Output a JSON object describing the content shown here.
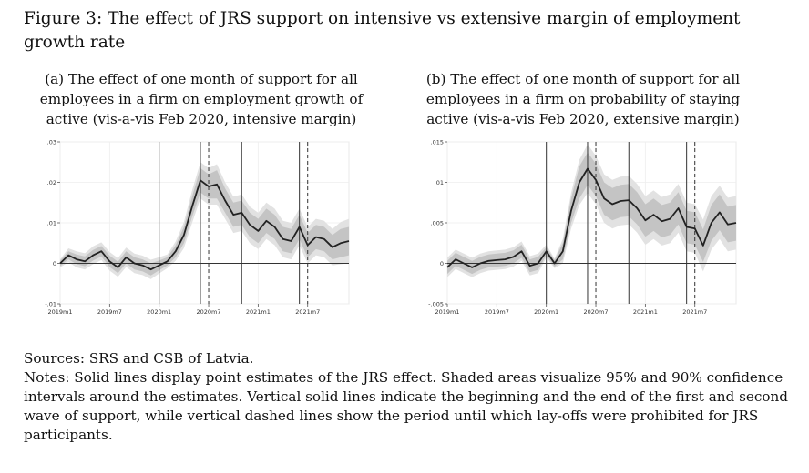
{
  "figure": {
    "title": "Figure 3: The effect of JRS support on intensive vs extensive margin of employment growth rate"
  },
  "panels": [
    {
      "title": "(a) The effect of one month of support for all employees in a firm on employment growth of active (vis-a-vis Feb 2020, intensive margin)"
    },
    {
      "title": "(b) The effect of one month of support for all employees in a firm on probability of staying active (vis-a-vis Feb 2020, extensive margin)"
    }
  ],
  "notes": {
    "sources": "Sources: SRS and CSB of Latvia.",
    "text": "Notes: Solid lines display point estimates of the JRS effect. Shaded areas visualize 95% and 90% confidence intervals around the estimates. Vertical solid lines indicate the beginning and the end of the first and second wave of support, while vertical dashed lines show the period until which lay-offs were prohibited for JRS participants."
  },
  "chart_data": [
    {
      "type": "line",
      "title": "(a) The effect of one month of support for all employees in a firm on employment growth of active (vis-a-vis Feb 2020, intensive margin)",
      "x_tick_labels": [
        "2019m1",
        "2019m7",
        "2020m1",
        "2020m7",
        "2021m1",
        "2021m7"
      ],
      "x_tick_index": [
        0,
        6,
        12,
        18,
        24,
        30
      ],
      "y_tick_labels": [
        "-.01",
        "0",
        ".01",
        ".02",
        ".03"
      ],
      "y_tick_values": [
        -0.01,
        0,
        0.01,
        0.02,
        0.03
      ],
      "ylim": [
        -0.01,
        0.03
      ],
      "xlim": [
        0,
        35
      ],
      "point_estimate": [
        0.0,
        0.002,
        0.001,
        0.0005,
        0.002,
        0.003,
        0.0005,
        -0.001,
        0.0015,
        0.0,
        -0.0005,
        -0.0015,
        -0.0005,
        0.0005,
        0.003,
        0.007,
        0.014,
        0.0205,
        0.019,
        0.0195,
        0.0155,
        0.012,
        0.0125,
        0.0095,
        0.008,
        0.0105,
        0.009,
        0.006,
        0.0055,
        0.009,
        0.0045,
        0.0065,
        0.006,
        0.004,
        0.005,
        0.0055
      ],
      "ci90_halfwidth": [
        0.0007,
        0.001,
        0.0012,
        0.0012,
        0.0013,
        0.0013,
        0.0014,
        0.0014,
        0.0015,
        0.0015,
        0.0015,
        0.0015,
        0.0012,
        0.001,
        0.0015,
        0.002,
        0.0025,
        0.003,
        0.003,
        0.0035,
        0.003,
        0.003,
        0.003,
        0.003,
        0.003,
        0.003,
        0.003,
        0.003,
        0.003,
        0.003,
        0.003,
        0.003,
        0.003,
        0.003,
        0.0035,
        0.0035
      ],
      "ci95_halfwidth": [
        0.001,
        0.0017,
        0.002,
        0.002,
        0.0022,
        0.0022,
        0.0023,
        0.0023,
        0.0024,
        0.0024,
        0.0024,
        0.0024,
        0.002,
        0.0017,
        0.0024,
        0.0032,
        0.004,
        0.0045,
        0.0045,
        0.005,
        0.0045,
        0.0045,
        0.0045,
        0.0045,
        0.0045,
        0.0045,
        0.0045,
        0.0045,
        0.0045,
        0.0045,
        0.0045,
        0.0045,
        0.0045,
        0.0045,
        0.0052,
        0.0055
      ],
      "vlines_solid": [
        12,
        17,
        22,
        29
      ],
      "vlines_dashed": [
        18,
        30
      ],
      "hline": 0
    },
    {
      "type": "line",
      "title": "(b) The effect of one month of support for all employees in a firm on probability of staying active (vis-a-vis Feb 2020, extensive margin)",
      "x_tick_labels": [
        "2019m1",
        "2019m7",
        "2020m1",
        "2020m7",
        "2021m1",
        "2021m7"
      ],
      "x_tick_index": [
        0,
        6,
        12,
        18,
        24,
        30
      ],
      "y_tick_labels": [
        "-.005",
        "0",
        ".005",
        ".01",
        ".015"
      ],
      "y_tick_values": [
        -0.005,
        0,
        0.005,
        0.01,
        0.015
      ],
      "ylim": [
        -0.005,
        0.015
      ],
      "xlim": [
        0,
        35
      ],
      "point_estimate": [
        -0.0005,
        0.0005,
        0.0,
        -0.0005,
        0.0,
        0.0003,
        0.0004,
        0.0005,
        0.0008,
        0.0015,
        -0.0003,
        0.0,
        0.0015,
        0.0,
        0.0015,
        0.0065,
        0.01,
        0.0117,
        0.0103,
        0.008,
        0.0073,
        0.0077,
        0.0078,
        0.0068,
        0.0053,
        0.006,
        0.0052,
        0.0055,
        0.0068,
        0.0045,
        0.0043,
        0.0022,
        0.005,
        0.0063,
        0.0048,
        0.005
      ],
      "ci90_halfwidth": [
        0.0008,
        0.0008,
        0.0008,
        0.0008,
        0.0008,
        0.0008,
        0.0008,
        0.0008,
        0.0008,
        0.0008,
        0.0008,
        0.0008,
        0.0005,
        0.0004,
        0.001,
        0.0015,
        0.002,
        0.002,
        0.002,
        0.002,
        0.002,
        0.002,
        0.002,
        0.002,
        0.002,
        0.002,
        0.002,
        0.002,
        0.002,
        0.002,
        0.002,
        0.002,
        0.0022,
        0.0022,
        0.0022,
        0.0022
      ],
      "ci95_halfwidth": [
        0.0012,
        0.0012,
        0.0012,
        0.0012,
        0.0012,
        0.0012,
        0.0012,
        0.0012,
        0.0012,
        0.0012,
        0.0012,
        0.0012,
        0.0008,
        0.0006,
        0.0015,
        0.0022,
        0.0028,
        0.003,
        0.003,
        0.003,
        0.003,
        0.003,
        0.003,
        0.003,
        0.003,
        0.003,
        0.003,
        0.003,
        0.003,
        0.003,
        0.003,
        0.0032,
        0.0033,
        0.0033,
        0.0033,
        0.0033
      ],
      "vlines_solid": [
        12,
        17,
        22,
        29
      ],
      "vlines_dashed": [
        18,
        30
      ],
      "hline": 0
    }
  ]
}
